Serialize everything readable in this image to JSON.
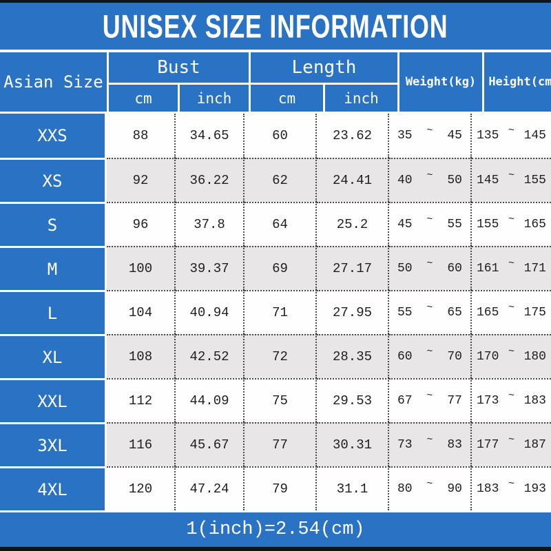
{
  "title": "UNISEX SIZE INFORMATION",
  "footer": {
    "note": "1(inch)=2.54(cm)"
  },
  "colors": {
    "header_blue": "#2a73c4",
    "row_white": "#fefefe",
    "row_shaded": "#e8e6e7",
    "frame_black": "#141414",
    "data_text": "#1e1e1e",
    "header_text": "#ffffff"
  },
  "table": {
    "corner_header": "Asian Size",
    "groups": [
      {
        "label": "Bust",
        "sub": [
          "cm",
          "inch"
        ]
      },
      {
        "label": "Length",
        "sub": [
          "cm",
          "inch"
        ]
      }
    ],
    "single_headers": [
      "Weight(kg)",
      "Height(cm)"
    ],
    "range_separator": "~"
  },
  "chart_data": {
    "type": "table",
    "title": "UNISEX SIZE INFORMATION",
    "note": "1(inch)=2.54(cm)",
    "columns": [
      "Asian Size",
      "Bust cm",
      "Bust inch",
      "Length cm",
      "Length inch",
      "Weight(kg) min",
      "Weight(kg) max",
      "Height(cm) min",
      "Height(cm) max"
    ],
    "rows": [
      {
        "size": "XXS",
        "bust_cm": "88",
        "bust_inch": "34.65",
        "length_cm": "60",
        "length_inch": "23.62",
        "weight_kg": [
          "35",
          "45"
        ],
        "height_cm": [
          "135",
          "145"
        ]
      },
      {
        "size": "XS",
        "bust_cm": "92",
        "bust_inch": "36.22",
        "length_cm": "62",
        "length_inch": "24.41",
        "weight_kg": [
          "40",
          "50"
        ],
        "height_cm": [
          "145",
          "155"
        ]
      },
      {
        "size": "S",
        "bust_cm": "96",
        "bust_inch": "37.8",
        "length_cm": "64",
        "length_inch": "25.2",
        "weight_kg": [
          "45",
          "55"
        ],
        "height_cm": [
          "155",
          "165"
        ]
      },
      {
        "size": "M",
        "bust_cm": "100",
        "bust_inch": "39.37",
        "length_cm": "69",
        "length_inch": "27.17",
        "weight_kg": [
          "50",
          "60"
        ],
        "height_cm": [
          "161",
          "171"
        ]
      },
      {
        "size": "L",
        "bust_cm": "104",
        "bust_inch": "40.94",
        "length_cm": "71",
        "length_inch": "27.95",
        "weight_kg": [
          "55",
          "65"
        ],
        "height_cm": [
          "165",
          "175"
        ]
      },
      {
        "size": "XL",
        "bust_cm": "108",
        "bust_inch": "42.52",
        "length_cm": "72",
        "length_inch": "28.35",
        "weight_kg": [
          "60",
          "70"
        ],
        "height_cm": [
          "170",
          "180"
        ]
      },
      {
        "size": "XXL",
        "bust_cm": "112",
        "bust_inch": "44.09",
        "length_cm": "75",
        "length_inch": "29.53",
        "weight_kg": [
          "67",
          "77"
        ],
        "height_cm": [
          "173",
          "183"
        ]
      },
      {
        "size": "3XL",
        "bust_cm": "116",
        "bust_inch": "45.67",
        "length_cm": "77",
        "length_inch": "30.31",
        "weight_kg": [
          "73",
          "83"
        ],
        "height_cm": [
          "177",
          "187"
        ]
      },
      {
        "size": "4XL",
        "bust_cm": "120",
        "bust_inch": "47.24",
        "length_cm": "79",
        "length_inch": "31.1",
        "weight_kg": [
          "80",
          "90"
        ],
        "height_cm": [
          "183",
          "193"
        ]
      }
    ]
  }
}
